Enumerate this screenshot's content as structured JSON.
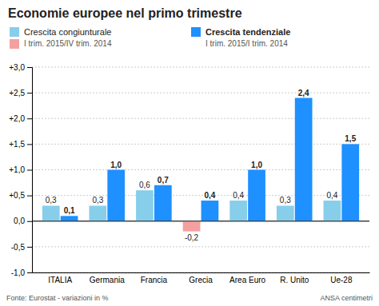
{
  "chart_data": {
    "type": "bar",
    "title": "Economie europee nel primo trimestre",
    "categories": [
      "ITALIA",
      "Germania",
      "Francia",
      "Grecia",
      "Area Euro",
      "R. Unito",
      "Ue-28"
    ],
    "series": [
      {
        "name": "Crescita congiunturale",
        "subtitle": "I trim. 2015/IV trim. 2014",
        "values": [
          0.3,
          0.3,
          0.6,
          -0.2,
          0.4,
          0.3,
          0.4
        ],
        "value_labels": [
          "0,3",
          "0,3",
          "0,6",
          "-0,2",
          "0,4",
          "0,3",
          "0,4"
        ],
        "colors": [
          "#87CEEB",
          "#87CEEB",
          "#87CEEB",
          "#F4A0A0",
          "#87CEEB",
          "#87CEEB",
          "#87CEEB"
        ]
      },
      {
        "name": "Crescita tendenziale",
        "subtitle": "I trim. 2015/I trim. 2014",
        "values": [
          0.1,
          1.0,
          0.7,
          0.4,
          1.0,
          2.4,
          1.5
        ],
        "value_labels": [
          "0,1",
          "1,0",
          "0,7",
          "0,4",
          "1,0",
          "2,4",
          "1,5"
        ],
        "color": "#1E90FF"
      }
    ],
    "ylim": [
      -1.0,
      3.0
    ],
    "yticks": [
      {
        "value": -1.0,
        "label": "-1,0"
      },
      {
        "value": -0.5,
        "label": "-0,5"
      },
      {
        "value": 0.0,
        "label": "0,0"
      },
      {
        "value": 0.5,
        "label": "+0,5"
      },
      {
        "value": 1.0,
        "label": "+1,0"
      },
      {
        "value": 1.5,
        "label": "+1,5"
      },
      {
        "value": 2.0,
        "label": "+2,0"
      },
      {
        "value": 2.5,
        "label": "+2,5"
      },
      {
        "value": 3.0,
        "label": "+3,0"
      }
    ],
    "grid": true,
    "data_labels": true,
    "annotations": [
      "Fonte: Eurostat - variazioni in %",
      "ANSA centimetri"
    ]
  }
}
